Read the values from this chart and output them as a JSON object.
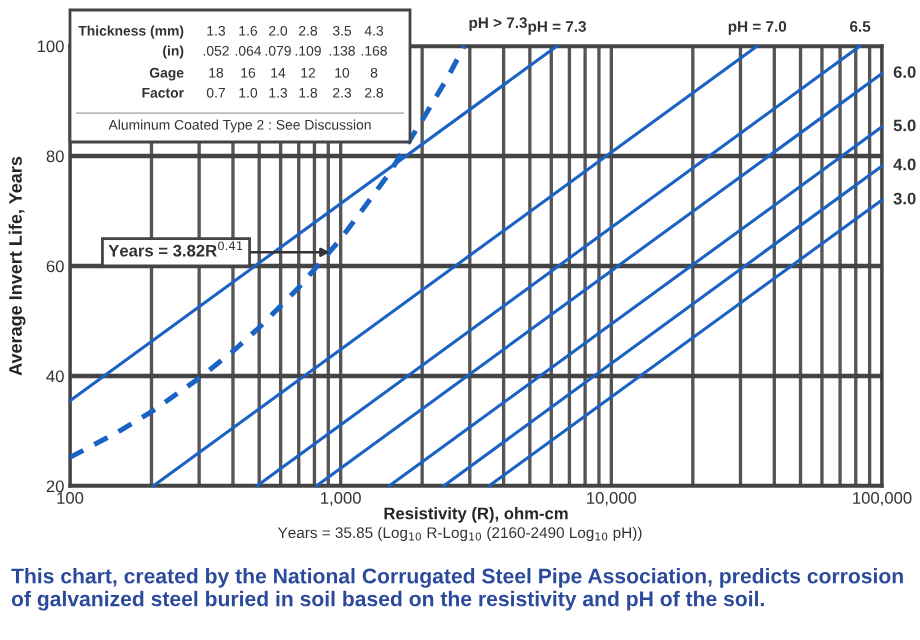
{
  "chart_data": {
    "type": "line",
    "xlabel": "Resistivity (R), ohm-cm",
    "ylabel": "Average Invert Life, Years",
    "log": "x",
    "xlim": [
      100,
      100000
    ],
    "xticks": [
      {
        "value": 100,
        "label": "100"
      },
      {
        "value": 200,
        "label": null
      },
      {
        "value": 300,
        "label": null
      },
      {
        "value": 400,
        "label": null
      },
      {
        "value": 500,
        "label": null
      },
      {
        "value": 600,
        "label": null
      },
      {
        "value": 700,
        "label": null
      },
      {
        "value": 800,
        "label": null
      },
      {
        "value": 900,
        "label": null
      },
      {
        "value": 1000,
        "label": "1,000"
      },
      {
        "value": 2000,
        "label": null
      },
      {
        "value": 3000,
        "label": null
      },
      {
        "value": 4000,
        "label": null
      },
      {
        "value": 5000,
        "label": null
      },
      {
        "value": 6000,
        "label": null
      },
      {
        "value": 7000,
        "label": null
      },
      {
        "value": 8000,
        "label": null
      },
      {
        "value": 9000,
        "label": null
      },
      {
        "value": 10000,
        "label": "10,000"
      },
      {
        "value": 20000,
        "label": null
      },
      {
        "value": 30000,
        "label": null
      },
      {
        "value": 40000,
        "label": null
      },
      {
        "value": 50000,
        "label": null
      },
      {
        "value": 60000,
        "label": null
      },
      {
        "value": 70000,
        "label": null
      },
      {
        "value": 80000,
        "label": null
      },
      {
        "value": 90000,
        "label": null
      },
      {
        "value": 100000,
        "label": "100,000"
      }
    ],
    "ylim": [
      20,
      100
    ],
    "yticks": [
      20,
      40,
      60,
      80,
      100
    ],
    "grid": true,
    "series": [
      {
        "color": "#1a62c4",
        "line_style": "dashed",
        "x": [
          100,
          150,
          200,
          300,
          400,
          500,
          700,
          1000,
          1500,
          2000,
          2500,
          2860
        ],
        "values": [
          25.2,
          29.8,
          33.5,
          39.6,
          44.5,
          48.8,
          56.1,
          64.9,
          76.6,
          86.5,
          94.5,
          100
        ]
      },
      {
        "name": "pH = 7.3",
        "color": "#1a62c4",
        "line_style": "solid",
        "x": [
          100,
          6300
        ],
        "values": [
          35.5,
          100
        ]
      },
      {
        "name": "pH = 7.0",
        "color": "#1a62c4",
        "line_style": "solid",
        "x": [
          203,
          34600
        ],
        "values": [
          20,
          100
        ]
      },
      {
        "name": "6.5",
        "color": "#1a62c4",
        "line_style": "solid",
        "x": [
          490,
          83000
        ],
        "values": [
          20,
          100
        ]
      },
      {
        "name": "6.0",
        "color": "#1a62c4",
        "line_style": "solid",
        "x": [
          813,
          100000
        ],
        "values": [
          20,
          95
        ]
      },
      {
        "name": "5.0",
        "color": "#1a62c4",
        "line_style": "solid",
        "x": [
          1510,
          100000
        ],
        "values": [
          20,
          85.3
        ]
      },
      {
        "name": "4.0",
        "color": "#1a62c4",
        "line_style": "solid",
        "x": [
          2400,
          100000
        ],
        "values": [
          20,
          78.2
        ]
      },
      {
        "name": "3.0",
        "color": "#1a62c4",
        "line_style": "solid",
        "x": [
          3530,
          100000
        ],
        "values": [
          20,
          72
        ]
      }
    ],
    "annotations": [
      "Thickness (mm)  1.3  1.6  2.0  2.8  3.5  4.3",
      "(in)  .052  .064  .079  .109  .138  .168",
      "Gage  18  16  14  12  10  8",
      "Factor  0.7  1.0  1.3  1.8  2.3  2.8",
      "Aluminum Coated Type 2 : See Discussion",
      "pH > 7.3",
      {
        "text": "Years = 3.82R$^{0.41}$",
        "x": 912,
        "y": 62.5
      },
      "Years = 35.85 (Log$_{10}$ R-Log$_{10}$ (2160-2490 Log$_{10}$ pH))",
      "This chart, created by the National Corrugated Steel Pipe Association, predicts corrosion of galvanized steel buried in soil based on the resistivity and pH of the soil."
    ]
  }
}
